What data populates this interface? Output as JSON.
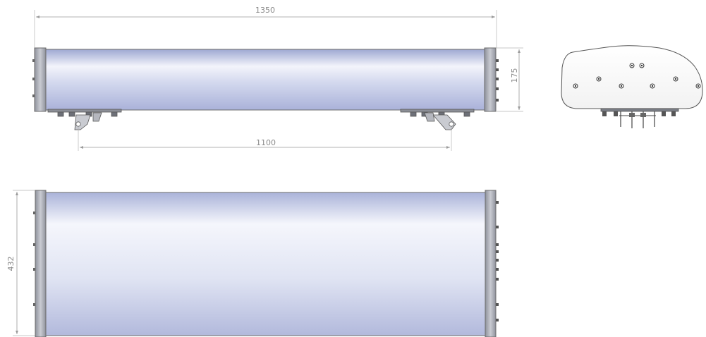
{
  "dimensions": {
    "overall_length": "1350",
    "mount_spacing": "1100",
    "side_height": "175",
    "top_width": "432"
  },
  "colors": {
    "body_top": "#9aa4cf",
    "body_highlight": "#f4f5fb",
    "body_bottom": "#b4bbdb",
    "end_cap": "#a9acb5",
    "mount": "#7f838c",
    "dimension_line": "#9a9a9a"
  }
}
